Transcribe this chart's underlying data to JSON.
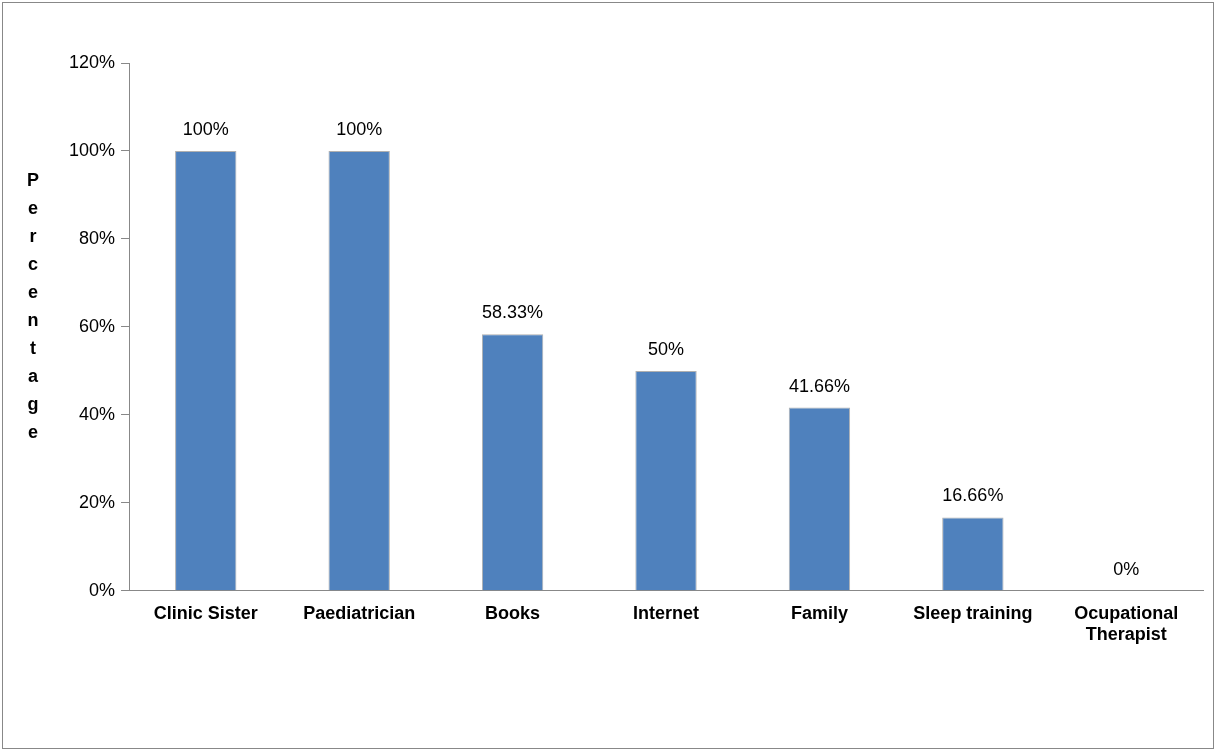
{
  "chart_data": {
    "type": "bar",
    "ylabel": "Percentage",
    "categories": [
      "Clinic Sister",
      "Paediatrician",
      "Books",
      "Internet",
      "Family",
      "Sleep training",
      "Ocupational Therapist"
    ],
    "values": [
      100,
      100,
      58.33,
      50,
      41.66,
      16.66,
      0
    ],
    "value_labels": [
      "100%",
      "100%",
      "58.33%",
      "50%",
      "41.66%",
      "16.66%",
      "0%"
    ],
    "color": "#4f81bd",
    "ylim": [
      0,
      120
    ],
    "yticks": [
      {
        "value": 0,
        "label": "0%"
      },
      {
        "value": 20,
        "label": "20%"
      },
      {
        "value": 40,
        "label": "40%"
      },
      {
        "value": 60,
        "label": "60%"
      },
      {
        "value": 80,
        "label": "80%"
      },
      {
        "value": 100,
        "label": "100%"
      },
      {
        "value": 120,
        "label": "120%"
      }
    ],
    "grid": false,
    "legend": false
  }
}
